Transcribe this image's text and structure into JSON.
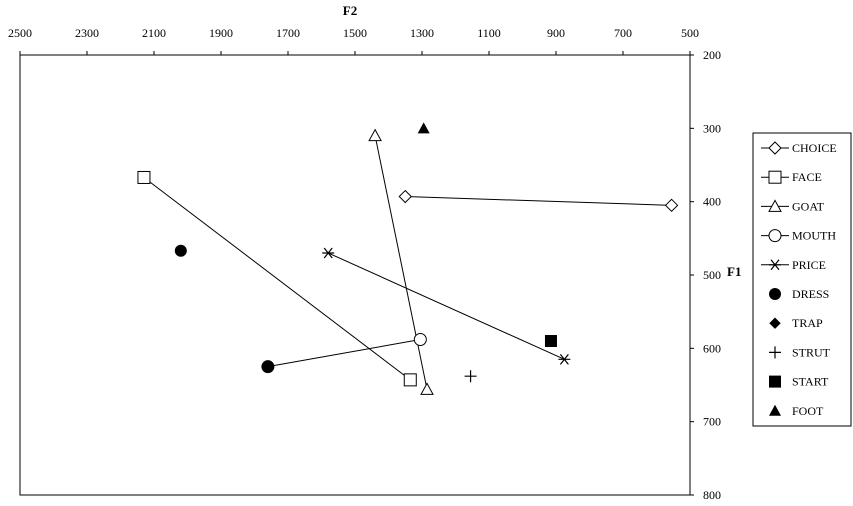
{
  "chart_data": {
    "type": "scatter",
    "x_axis": {
      "label": "F2",
      "reversed": true,
      "range": [
        2500,
        500
      ],
      "ticks": [
        2500,
        2300,
        2100,
        1900,
        1700,
        1500,
        1300,
        1100,
        900,
        700,
        500
      ],
      "position": "top"
    },
    "y_axis": {
      "label": "F1",
      "reversed": true,
      "range": [
        200,
        800
      ],
      "ticks": [
        200,
        300,
        400,
        500,
        600,
        700,
        800
      ],
      "position": "right"
    },
    "grid": false,
    "legend_position": "right",
    "series": [
      {
        "name": "CHOICE",
        "marker": "diamond-open",
        "connected": true,
        "points": [
          [
            1350,
            393
          ],
          [
            555,
            405
          ]
        ]
      },
      {
        "name": "FACE",
        "marker": "square-open",
        "connected": true,
        "points": [
          [
            2130,
            367
          ],
          [
            1335,
            643
          ]
        ]
      },
      {
        "name": "GOAT",
        "marker": "triangle-open",
        "connected": true,
        "points": [
          [
            1440,
            310
          ],
          [
            1285,
            656
          ]
        ]
      },
      {
        "name": "MOUTH",
        "marker": "circle-open",
        "connected": true,
        "points": [
          [
            1760,
            625
          ],
          [
            1305,
            588
          ]
        ]
      },
      {
        "name": "PRICE",
        "marker": "asterisk",
        "connected": true,
        "points": [
          [
            1580,
            470
          ],
          [
            875,
            615
          ]
        ]
      },
      {
        "name": "DRESS",
        "marker": "circle-filled",
        "connected": false,
        "points": [
          [
            2020,
            467
          ],
          [
            1760,
            625
          ]
        ]
      },
      {
        "name": "TRAP",
        "marker": "diamond-filled",
        "connected": false,
        "points": []
      },
      {
        "name": "STRUT",
        "marker": "plus",
        "connected": false,
        "points": [
          [
            1155,
            638
          ]
        ]
      },
      {
        "name": "START",
        "marker": "square-filled",
        "connected": false,
        "points": [
          [
            915,
            590
          ]
        ]
      },
      {
        "name": "FOOT",
        "marker": "triangle-filled",
        "connected": false,
        "points": [
          [
            1295,
            300
          ]
        ]
      }
    ]
  }
}
